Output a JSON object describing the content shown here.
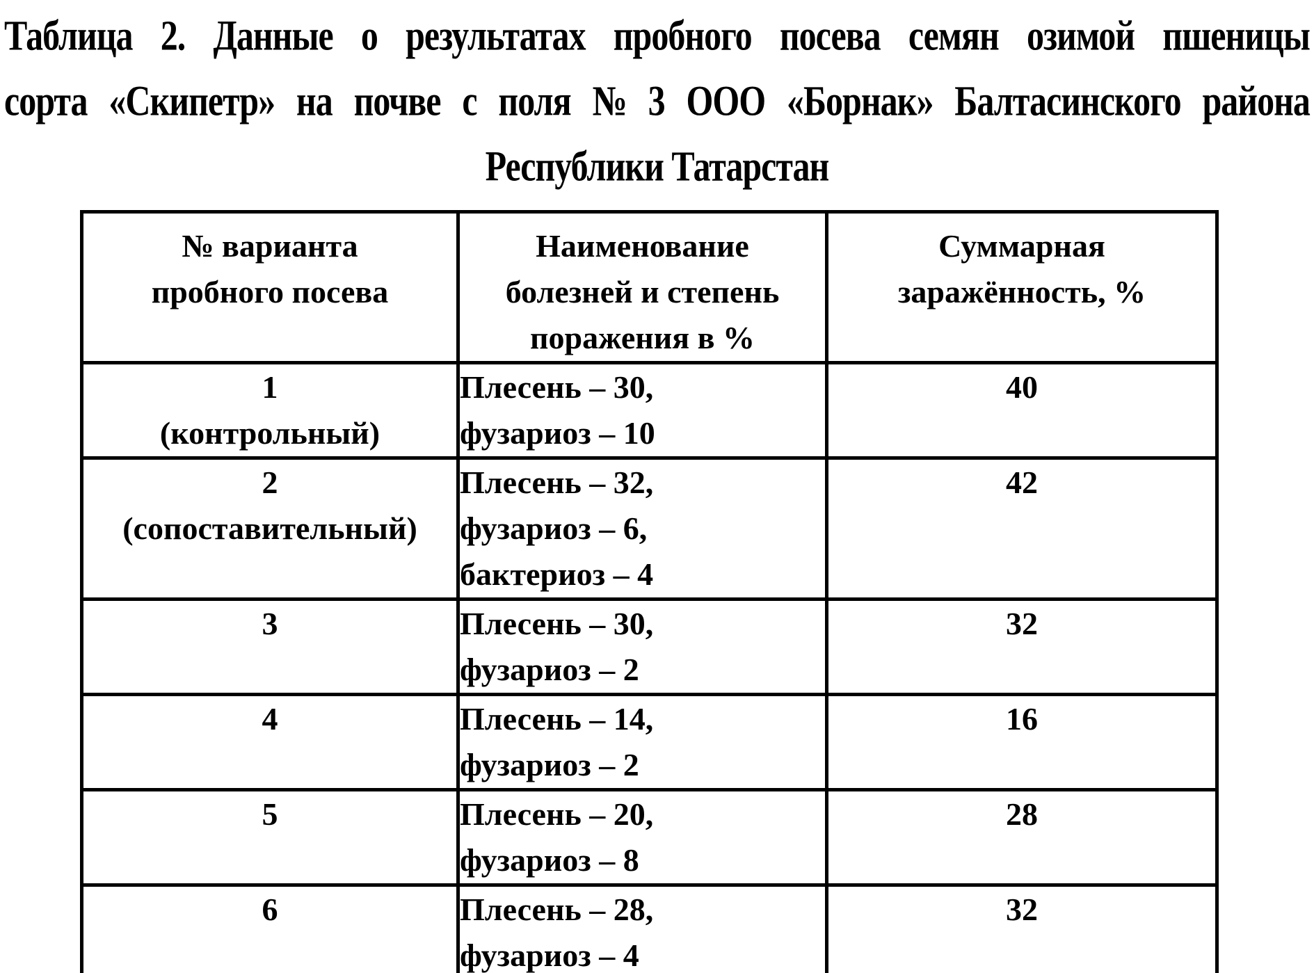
{
  "document": {
    "title_lines": [
      "Таблица 2. Данные о результатах пробного посева семян озимой пшеницы",
      "сорта «Скипетр» на почве с поля № 3 ООО «Борнак» Балтасинского района",
      "Республики Татарстан"
    ]
  },
  "table": {
    "headers": {
      "variant": [
        "№ варианта",
        "пробного посева"
      ],
      "diseases": [
        "Наименование",
        "болезней и степень",
        "поражения в %"
      ],
      "total": [
        "Суммарная",
        "заражённость, %"
      ]
    },
    "rows": [
      {
        "variant": [
          "1",
          "(контрольный)"
        ],
        "diseases": [
          "Плесень – 30,",
          "фузариоз – 10"
        ],
        "total": "40"
      },
      {
        "variant": [
          "2",
          "(сопоставительный)"
        ],
        "diseases": [
          "Плесень – 32,",
          "фузариоз – 6,",
          "бактериоз – 4"
        ],
        "total": "42"
      },
      {
        "variant": [
          "3"
        ],
        "diseases": [
          "Плесень – 30,",
          "фузариоз – 2"
        ],
        "total": "32"
      },
      {
        "variant": [
          "4"
        ],
        "diseases": [
          "Плесень – 14,",
          "фузариоз – 2"
        ],
        "total": "16"
      },
      {
        "variant": [
          "5"
        ],
        "diseases": [
          "Плесень – 20,",
          "фузариоз – 8"
        ],
        "total": "28"
      },
      {
        "variant": [
          "6"
        ],
        "diseases": [
          "Плесень – 28,",
          "фузариоз – 4"
        ],
        "total": "32"
      }
    ]
  }
}
